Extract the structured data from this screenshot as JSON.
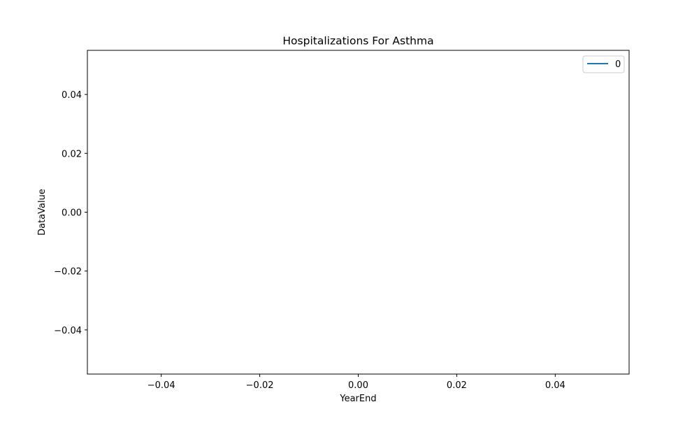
{
  "chart_data": {
    "type": "line",
    "title": "Hospitalizations For Asthma",
    "xlabel": "YearEnd",
    "ylabel": "DataValue",
    "xlim": [
      -0.055,
      0.055
    ],
    "ylim": [
      -0.055,
      0.055
    ],
    "x_ticks": [
      -0.04,
      -0.02,
      0.0,
      0.02,
      0.04
    ],
    "x_tick_labels": [
      "−0.04",
      "−0.02",
      "0.00",
      "0.02",
      "0.04"
    ],
    "y_ticks": [
      -0.04,
      -0.02,
      0.0,
      0.02,
      0.04
    ],
    "y_tick_labels": [
      "−0.04",
      "−0.02",
      "0.00",
      "0.02",
      "0.04"
    ],
    "grid": false,
    "legend_position": "top-right",
    "series": [
      {
        "name": "0",
        "color": "#1f77b4",
        "x": [],
        "y": []
      }
    ]
  }
}
